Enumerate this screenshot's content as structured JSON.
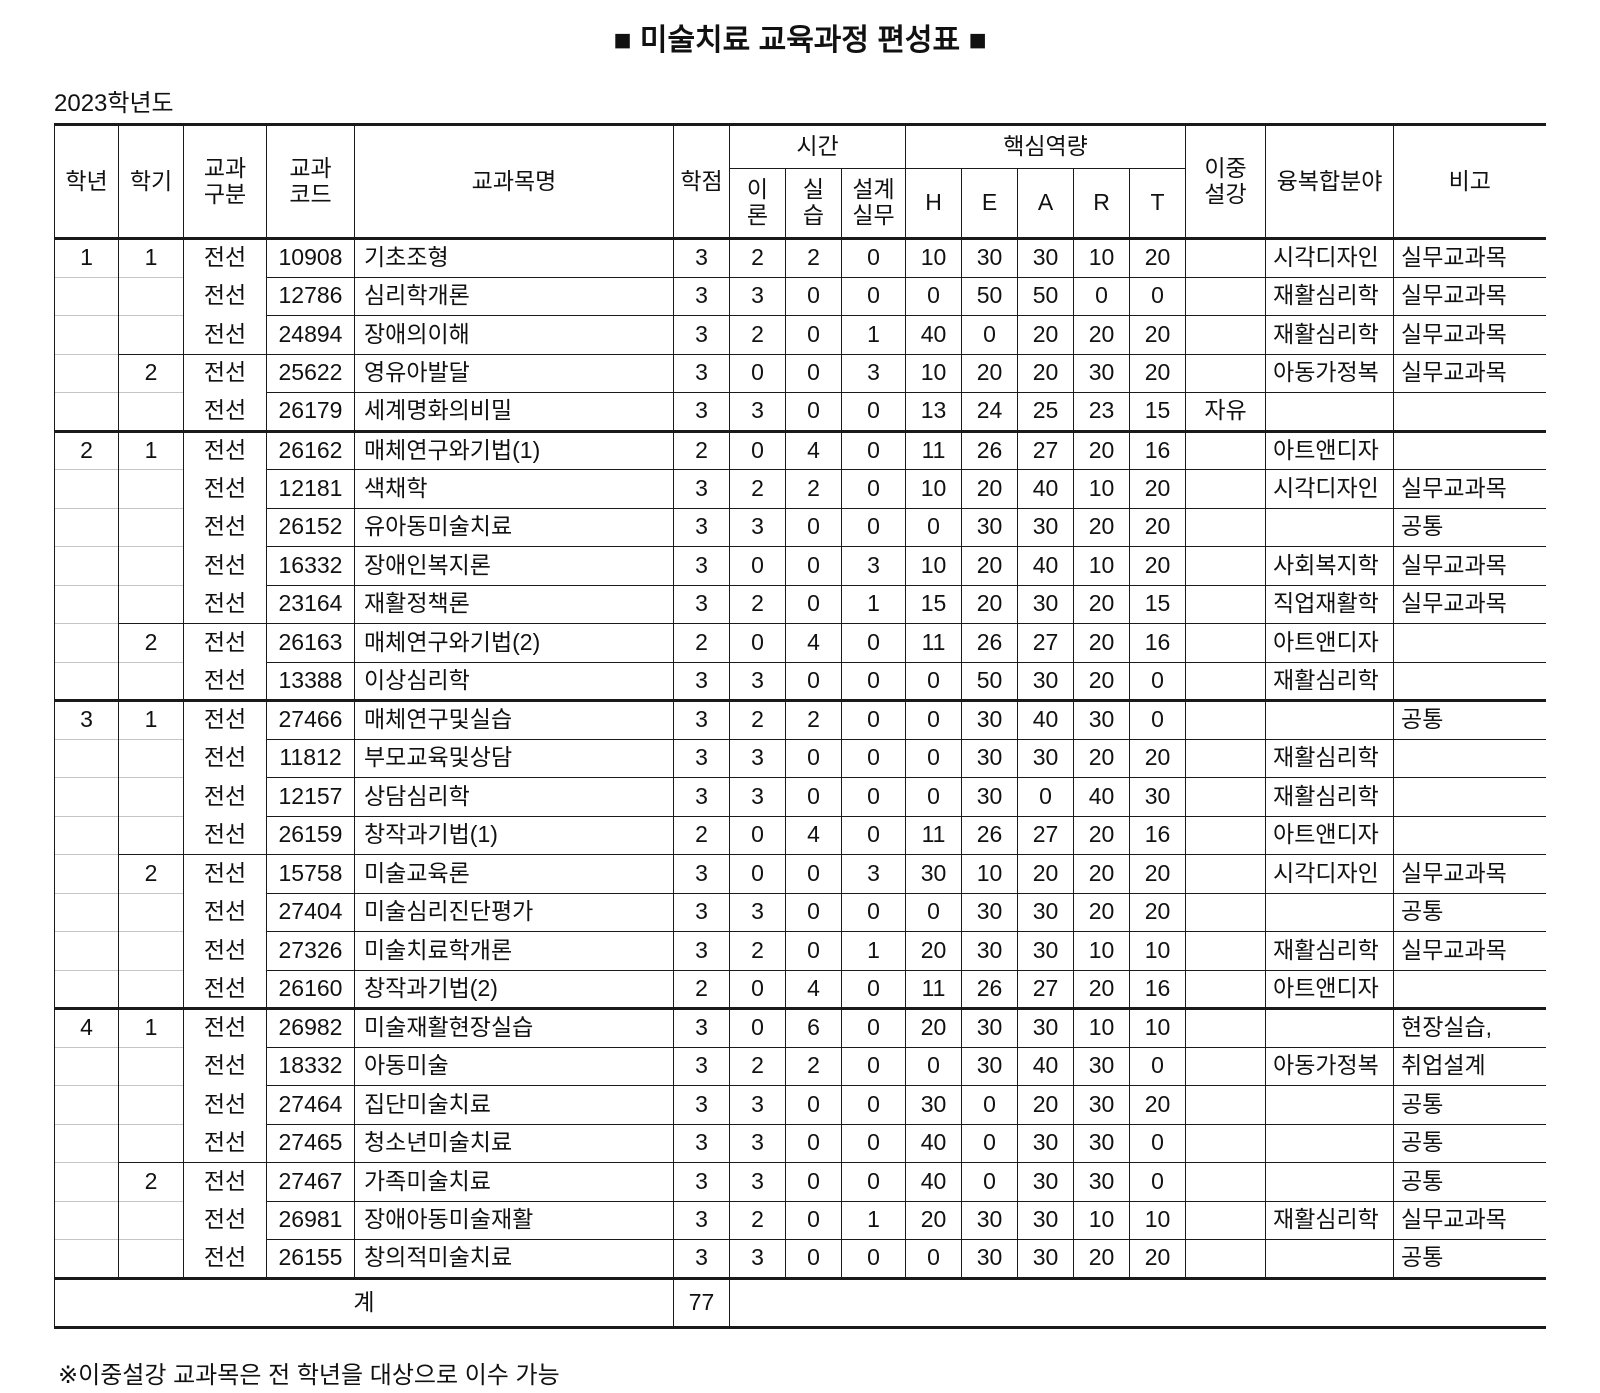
{
  "title": "■ 미술치료 교육과정 편성표 ■",
  "year_label": "2023학년도",
  "footnote": "※이중설강 교과목은 전 학년을 대상으로 이수 가능",
  "table": {
    "headers": {
      "grade": "학년",
      "semester": "학기",
      "course_type": "교과\n구분",
      "course_code": "교과\n코드",
      "course_name": "교과목명",
      "credits": "학점",
      "time_group": "시간",
      "theory": "이\n론",
      "practice": "실\n습",
      "design_practice": "설계\n실무",
      "competency_group": "핵심역량",
      "h": "H",
      "e": "E",
      "a": "A",
      "r": "R",
      "t": "T",
      "dual": "이중\n설강",
      "convergence": "융복합분야",
      "remarks": "비고"
    },
    "rows": [
      {
        "grade": "1",
        "sem": "1",
        "type": "전선",
        "code": "10908",
        "name": "기초조형",
        "credit": "3",
        "theory": "2",
        "practice": "2",
        "design": "0",
        "H": "10",
        "E": "30",
        "A": "30",
        "R": "10",
        "T": "20",
        "dual": "",
        "field": "시각디자인",
        "note": "실무교과목"
      },
      {
        "grade": "",
        "sem": "",
        "type": "전선",
        "code": "12786",
        "name": "심리학개론",
        "credit": "3",
        "theory": "3",
        "practice": "0",
        "design": "0",
        "H": "0",
        "E": "50",
        "A": "50",
        "R": "0",
        "T": "0",
        "dual": "",
        "field": "재활심리학",
        "note": "실무교과목"
      },
      {
        "grade": "",
        "sem": "",
        "type": "전선",
        "code": "24894",
        "name": "장애의이해",
        "credit": "3",
        "theory": "2",
        "practice": "0",
        "design": "1",
        "H": "40",
        "E": "0",
        "A": "20",
        "R": "20",
        "T": "20",
        "dual": "",
        "field": "재활심리학",
        "note": "실무교과목"
      },
      {
        "grade": "",
        "sem": "2",
        "type": "전선",
        "code": "25622",
        "name": "영유아발달",
        "credit": "3",
        "theory": "0",
        "practice": "0",
        "design": "3",
        "H": "10",
        "E": "20",
        "A": "20",
        "R": "30",
        "T": "20",
        "dual": "",
        "field": "아동가정복",
        "note": "실무교과목"
      },
      {
        "grade": "",
        "sem": "",
        "type": "전선",
        "code": "26179",
        "name": "세계명화의비밀",
        "credit": "3",
        "theory": "3",
        "practice": "0",
        "design": "0",
        "H": "13",
        "E": "24",
        "A": "25",
        "R": "23",
        "T": "15",
        "dual": "자유",
        "field": "",
        "note": ""
      },
      {
        "grade": "2",
        "sem": "1",
        "type": "전선",
        "code": "26162",
        "name": "매체연구와기법(1)",
        "credit": "2",
        "theory": "0",
        "practice": "4",
        "design": "0",
        "H": "11",
        "E": "26",
        "A": "27",
        "R": "20",
        "T": "16",
        "dual": "",
        "field": "아트앤디자",
        "note": ""
      },
      {
        "grade": "",
        "sem": "",
        "type": "전선",
        "code": "12181",
        "name": "색채학",
        "credit": "3",
        "theory": "2",
        "practice": "2",
        "design": "0",
        "H": "10",
        "E": "20",
        "A": "40",
        "R": "10",
        "T": "20",
        "dual": "",
        "field": "시각디자인",
        "note": "실무교과목"
      },
      {
        "grade": "",
        "sem": "",
        "type": "전선",
        "code": "26152",
        "name": "유아동미술치료",
        "credit": "3",
        "theory": "3",
        "practice": "0",
        "design": "0",
        "H": "0",
        "E": "30",
        "A": "30",
        "R": "20",
        "T": "20",
        "dual": "",
        "field": "",
        "note": "공통"
      },
      {
        "grade": "",
        "sem": "",
        "type": "전선",
        "code": "16332",
        "name": "장애인복지론",
        "credit": "3",
        "theory": "0",
        "practice": "0",
        "design": "3",
        "H": "10",
        "E": "20",
        "A": "40",
        "R": "10",
        "T": "20",
        "dual": "",
        "field": "사회복지학",
        "note": "실무교과목"
      },
      {
        "grade": "",
        "sem": "",
        "type": "전선",
        "code": "23164",
        "name": "재활정책론",
        "credit": "3",
        "theory": "2",
        "practice": "0",
        "design": "1",
        "H": "15",
        "E": "20",
        "A": "30",
        "R": "20",
        "T": "15",
        "dual": "",
        "field": "직업재활학",
        "note": "실무교과목"
      },
      {
        "grade": "",
        "sem": "2",
        "type": "전선",
        "code": "26163",
        "name": "매체연구와기법(2)",
        "credit": "2",
        "theory": "0",
        "practice": "4",
        "design": "0",
        "H": "11",
        "E": "26",
        "A": "27",
        "R": "20",
        "T": "16",
        "dual": "",
        "field": "아트앤디자",
        "note": ""
      },
      {
        "grade": "",
        "sem": "",
        "type": "전선",
        "code": "13388",
        "name": "이상심리학",
        "credit": "3",
        "theory": "3",
        "practice": "0",
        "design": "0",
        "H": "0",
        "E": "50",
        "A": "30",
        "R": "20",
        "T": "0",
        "dual": "",
        "field": "재활심리학",
        "note": ""
      },
      {
        "grade": "3",
        "sem": "1",
        "type": "전선",
        "code": "27466",
        "name": "매체연구및실습",
        "credit": "3",
        "theory": "2",
        "practice": "2",
        "design": "0",
        "H": "0",
        "E": "30",
        "A": "40",
        "R": "30",
        "T": "0",
        "dual": "",
        "field": "",
        "note": "공통"
      },
      {
        "grade": "",
        "sem": "",
        "type": "전선",
        "code": "11812",
        "name": "부모교육및상담",
        "credit": "3",
        "theory": "3",
        "practice": "0",
        "design": "0",
        "H": "0",
        "E": "30",
        "A": "30",
        "R": "20",
        "T": "20",
        "dual": "",
        "field": "재활심리학",
        "note": ""
      },
      {
        "grade": "",
        "sem": "",
        "type": "전선",
        "code": "12157",
        "name": "상담심리학",
        "credit": "3",
        "theory": "3",
        "practice": "0",
        "design": "0",
        "H": "0",
        "E": "30",
        "A": "0",
        "R": "40",
        "T": "30",
        "dual": "",
        "field": "재활심리학",
        "note": ""
      },
      {
        "grade": "",
        "sem": "",
        "type": "전선",
        "code": "26159",
        "name": "창작과기법(1)",
        "credit": "2",
        "theory": "0",
        "practice": "4",
        "design": "0",
        "H": "11",
        "E": "26",
        "A": "27",
        "R": "20",
        "T": "16",
        "dual": "",
        "field": "아트앤디자",
        "note": ""
      },
      {
        "grade": "",
        "sem": "2",
        "type": "전선",
        "code": "15758",
        "name": "미술교육론",
        "credit": "3",
        "theory": "0",
        "practice": "0",
        "design": "3",
        "H": "30",
        "E": "10",
        "A": "20",
        "R": "20",
        "T": "20",
        "dual": "",
        "field": "시각디자인",
        "note": "실무교과목"
      },
      {
        "grade": "",
        "sem": "",
        "type": "전선",
        "code": "27404",
        "name": "미술심리진단평가",
        "credit": "3",
        "theory": "3",
        "practice": "0",
        "design": "0",
        "H": "0",
        "E": "30",
        "A": "30",
        "R": "20",
        "T": "20",
        "dual": "",
        "field": "",
        "note": "공통"
      },
      {
        "grade": "",
        "sem": "",
        "type": "전선",
        "code": "27326",
        "name": "미술치료학개론",
        "credit": "3",
        "theory": "2",
        "practice": "0",
        "design": "1",
        "H": "20",
        "E": "30",
        "A": "30",
        "R": "10",
        "T": "10",
        "dual": "",
        "field": "재활심리학",
        "note": "실무교과목"
      },
      {
        "grade": "",
        "sem": "",
        "type": "전선",
        "code": "26160",
        "name": "창작과기법(2)",
        "credit": "2",
        "theory": "0",
        "practice": "4",
        "design": "0",
        "H": "11",
        "E": "26",
        "A": "27",
        "R": "20",
        "T": "16",
        "dual": "",
        "field": "아트앤디자",
        "note": ""
      },
      {
        "grade": "4",
        "sem": "1",
        "type": "전선",
        "code": "26982",
        "name": "미술재활현장실습",
        "credit": "3",
        "theory": "0",
        "practice": "6",
        "design": "0",
        "H": "20",
        "E": "30",
        "A": "30",
        "R": "10",
        "T": "10",
        "dual": "",
        "field": "",
        "note": "현장실습,"
      },
      {
        "grade": "",
        "sem": "",
        "type": "전선",
        "code": "18332",
        "name": "아동미술",
        "credit": "3",
        "theory": "2",
        "practice": "2",
        "design": "0",
        "H": "0",
        "E": "30",
        "A": "40",
        "R": "30",
        "T": "0",
        "dual": "",
        "field": "아동가정복",
        "note": "취업설계"
      },
      {
        "grade": "",
        "sem": "",
        "type": "전선",
        "code": "27464",
        "name": "집단미술치료",
        "credit": "3",
        "theory": "3",
        "practice": "0",
        "design": "0",
        "H": "30",
        "E": "0",
        "A": "20",
        "R": "30",
        "T": "20",
        "dual": "",
        "field": "",
        "note": "공통"
      },
      {
        "grade": "",
        "sem": "",
        "type": "전선",
        "code": "27465",
        "name": "청소년미술치료",
        "credit": "3",
        "theory": "3",
        "practice": "0",
        "design": "0",
        "H": "40",
        "E": "0",
        "A": "30",
        "R": "30",
        "T": "0",
        "dual": "",
        "field": "",
        "note": "공통"
      },
      {
        "grade": "",
        "sem": "2",
        "type": "전선",
        "code": "27467",
        "name": "가족미술치료",
        "credit": "3",
        "theory": "3",
        "practice": "0",
        "design": "0",
        "H": "40",
        "E": "0",
        "A": "30",
        "R": "30",
        "T": "0",
        "dual": "",
        "field": "",
        "note": "공통"
      },
      {
        "grade": "",
        "sem": "",
        "type": "전선",
        "code": "26981",
        "name": "장애아동미술재활",
        "credit": "3",
        "theory": "2",
        "practice": "0",
        "design": "1",
        "H": "20",
        "E": "30",
        "A": "30",
        "R": "10",
        "T": "10",
        "dual": "",
        "field": "재활심리학",
        "note": "실무교과목"
      },
      {
        "grade": "",
        "sem": "",
        "type": "전선",
        "code": "26155",
        "name": "창의적미술치료",
        "credit": "3",
        "theory": "3",
        "practice": "0",
        "design": "0",
        "H": "0",
        "E": "30",
        "A": "30",
        "R": "20",
        "T": "20",
        "dual": "",
        "field": "",
        "note": "공통"
      }
    ],
    "total": {
      "label": "계",
      "credits": "77"
    }
  }
}
